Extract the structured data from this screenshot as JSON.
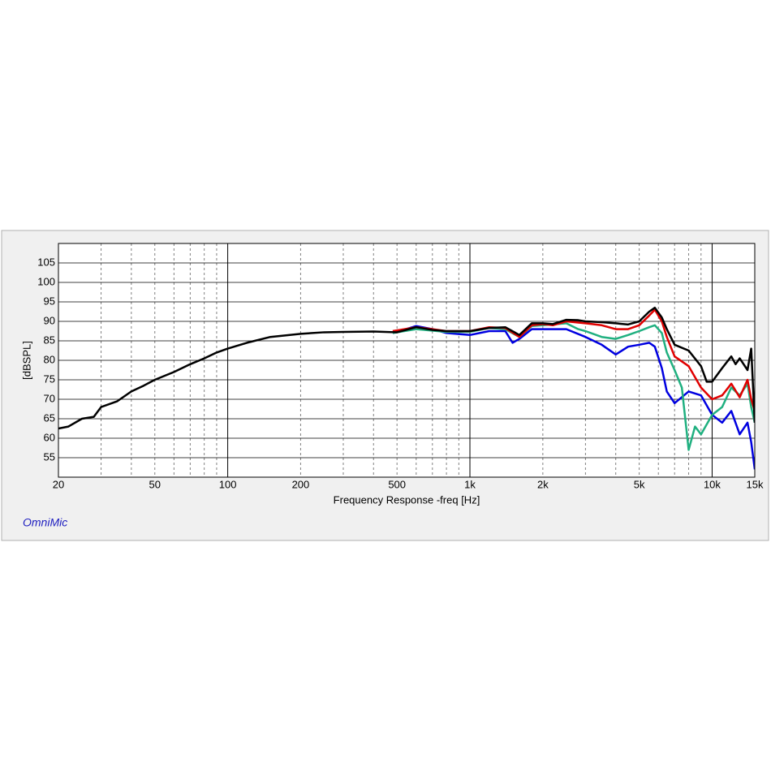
{
  "chart_data": {
    "type": "line",
    "x_label": "Frequency Response -freq [Hz]",
    "y_label": "[dBSPL]",
    "brand": "OmniMic",
    "xscale": "log",
    "xlim": [
      20,
      15000
    ],
    "ylim": [
      50,
      110
    ],
    "xticks": [
      20,
      50,
      100,
      200,
      500,
      {
        "value": 1000,
        "label": "1k"
      },
      {
        "value": 2000,
        "label": "2k"
      },
      {
        "value": 5000,
        "label": "5k"
      },
      {
        "value": 10000,
        "label": "10k"
      },
      {
        "value": 15000,
        "label": "15k"
      }
    ],
    "yticks": [
      55,
      60,
      65,
      70,
      75,
      80,
      85,
      90,
      95,
      100,
      105
    ],
    "xgrid_major": [
      100,
      1000,
      10000
    ],
    "xgrid_minor": [
      30,
      40,
      50,
      60,
      70,
      80,
      90,
      200,
      300,
      400,
      500,
      600,
      700,
      800,
      900,
      2000,
      3000,
      4000,
      5000,
      6000,
      7000,
      8000,
      9000
    ],
    "grid": true,
    "series": [
      {
        "color": "#0000e0",
        "x": [
          480,
          600,
          700,
          800,
          1000,
          1200,
          1400,
          1500,
          1600,
          1800,
          2000,
          2500,
          3000,
          3500,
          4000,
          4500,
          5000,
          5500,
          5800,
          6200,
          6500,
          7000,
          8000,
          9000,
          10000,
          11000,
          12000,
          13000,
          14000,
          14500,
          15000
        ],
        "values": [
          87,
          88.8,
          88,
          87,
          86.5,
          87.5,
          87.5,
          84.5,
          85.5,
          88,
          88,
          88,
          86,
          84,
          81.5,
          83.5,
          84,
          84.5,
          83.5,
          78,
          72,
          69,
          72,
          71,
          66,
          64,
          67,
          61,
          64,
          59,
          52
        ]
      },
      {
        "color": "#20b080",
        "x": [
          480,
          600,
          800,
          1000,
          1200,
          1400,
          1600,
          1800,
          2000,
          2500,
          2800,
          3000,
          3500,
          4000,
          4500,
          5000,
          5500,
          5800,
          6200,
          6500,
          7000,
          7500,
          8000,
          8500,
          9000,
          10000,
          11000,
          12000,
          13000,
          14000,
          14500,
          15000
        ],
        "values": [
          87,
          88,
          87.3,
          87.3,
          88.3,
          88,
          86,
          88.8,
          89,
          89.5,
          88,
          87.5,
          86,
          85.5,
          86.5,
          87.5,
          88.5,
          89,
          87,
          82,
          77.5,
          73,
          57,
          63,
          61,
          66,
          68,
          73,
          71,
          74,
          68,
          64
        ]
      },
      {
        "color": "#e00000",
        "x": [
          480,
          600,
          700,
          800,
          1000,
          1200,
          1400,
          1600,
          1800,
          2000,
          2200,
          2500,
          3000,
          3500,
          4000,
          4500,
          5000,
          5500,
          5800,
          6200,
          6500,
          7000,
          8000,
          9000,
          10000,
          11000,
          12000,
          13000,
          14000,
          14500,
          15000
        ],
        "values": [
          87.5,
          88.5,
          88,
          87.5,
          87.5,
          88.5,
          88.3,
          86,
          89,
          89.3,
          89,
          90,
          89.5,
          89,
          88,
          88,
          89,
          91.5,
          93,
          90,
          86,
          81,
          78.5,
          73,
          70,
          71,
          74,
          70.5,
          75,
          70,
          67
        ]
      },
      {
        "color": "#000000",
        "x": [
          20,
          22,
          25,
          28,
          30,
          35,
          40,
          45,
          50,
          60,
          70,
          80,
          90,
          100,
          120,
          150,
          200,
          250,
          300,
          400,
          500,
          600,
          700,
          800,
          1000,
          1200,
          1400,
          1600,
          1800,
          2000,
          2200,
          2500,
          2800,
          3000,
          3500,
          4000,
          4500,
          5000,
          5500,
          5800,
          6200,
          6500,
          7000,
          8000,
          9000,
          9500,
          10000,
          11000,
          12000,
          12500,
          13000,
          14000,
          14500,
          15000
        ],
        "values": [
          62.5,
          63,
          65,
          65.5,
          68,
          69.5,
          72,
          73.5,
          75,
          77,
          79,
          80.5,
          82,
          83,
          84.5,
          86,
          86.8,
          87.2,
          87.3,
          87.4,
          87.2,
          88.5,
          87.8,
          87.5,
          87.5,
          88.3,
          88.5,
          86.5,
          89.5,
          89.5,
          89.3,
          90.4,
          90.3,
          90,
          89.8,
          89.5,
          89.2,
          90,
          92.5,
          93.5,
          91,
          88,
          84,
          82.5,
          78.5,
          74.5,
          74.5,
          78,
          81,
          79,
          80.5,
          77.5,
          83,
          64
        ]
      }
    ]
  }
}
